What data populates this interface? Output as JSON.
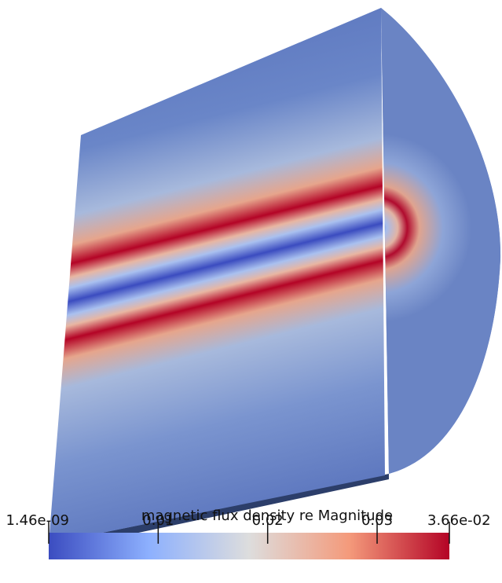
{
  "colorbar": {
    "title": "magnetic flux density re Magnitude",
    "lim": [
      1.46e-09,
      0.0366
    ],
    "ticks": [
      {
        "value": 1.46e-09,
        "label": "1.46e-09"
      },
      0.01,
      0.02,
      0.03,
      {
        "value": 0.0366,
        "label": "3.66e-02"
      }
    ]
  }
}
